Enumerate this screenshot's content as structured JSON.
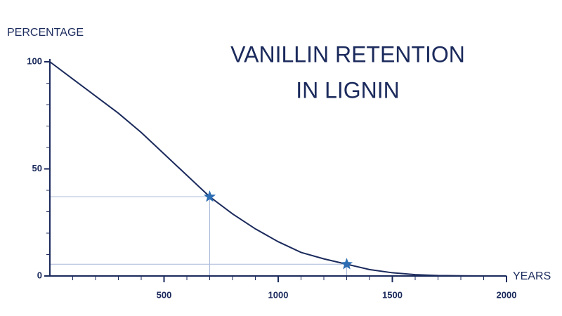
{
  "chart_data": {
    "type": "line",
    "title": [
      "VANILLIN RETENTION",
      "IN LIGNIN"
    ],
    "y_label": "PERCENTAGE",
    "x_label": "YEARS",
    "x": [
      0,
      100,
      200,
      300,
      400,
      500,
      600,
      700,
      800,
      900,
      1000,
      1100,
      1200,
      1300,
      1400,
      1500,
      1600,
      1700,
      1800,
      1900,
      2000
    ],
    "series": [
      {
        "color": "#1b2a5c",
        "values": [
          100,
          92,
          84,
          76,
          67,
          57,
          47,
          37,
          29,
          22,
          16,
          11,
          8,
          5.5,
          3,
          1.5,
          0.6,
          0.2,
          0.1,
          0,
          0
        ]
      }
    ],
    "points": {
      "color": "#2c6db4",
      "x": [
        700,
        1300
      ],
      "values": [
        37,
        5.5
      ]
    },
    "guide_color": "#a9b9d9",
    "xlim": [
      0,
      2000
    ],
    "ylim": [
      0,
      100
    ],
    "xticks": [
      500,
      1000,
      1500,
      2000
    ],
    "yticks": [
      0,
      50,
      100
    ],
    "x_minor_ticks": [
      100,
      200,
      300,
      400,
      600,
      700,
      800,
      900,
      1100,
      1200,
      1300,
      1400,
      1600,
      1700,
      1800,
      1900
    ],
    "y_minor_ticks": [
      10,
      20,
      30,
      40,
      60,
      70,
      80,
      90
    ]
  }
}
